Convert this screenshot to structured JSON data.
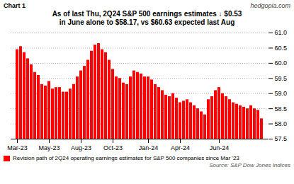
{
  "chart_data": {
    "type": "bar",
    "title": "As of last Thu, 2Q24 S&P 500 earnings estimates ↓ $0.53",
    "subtitle": "in June alone to $58.17, vs $60.63 expected last Aug",
    "annotations": [
      "Chart 1",
      "hedgopia.com",
      "Source: S&P Dow Jones Indices"
    ],
    "categories": [
      "Mar-23",
      null,
      null,
      null,
      null,
      null,
      null,
      null,
      null,
      "May-23",
      null,
      null,
      null,
      null,
      null,
      null,
      null,
      null,
      "Aug-23",
      null,
      null,
      null,
      null,
      null,
      null,
      null,
      null,
      "Oct-23",
      null,
      null,
      null,
      null,
      null,
      null,
      null,
      null,
      null,
      "Jan-24",
      null,
      null,
      null,
      null,
      null,
      null,
      null,
      null,
      "Apr-24",
      null,
      null,
      null,
      null,
      null,
      null,
      null,
      null,
      null,
      null,
      "Jun-24",
      null,
      null,
      null,
      null,
      null,
      null,
      null,
      null,
      null,
      null,
      null,
      null
    ],
    "series": [
      {
        "name": "Revision path of 2Q24 operating earnings estimates for S&P 500 companies since Mar '23",
        "color": "#ff0000",
        "values": [
          60.45,
          60.55,
          60.35,
          60.15,
          59.95,
          59.7,
          59.6,
          59.3,
          59.25,
          59.4,
          59.15,
          59.2,
          59.2,
          59.05,
          59.05,
          59.15,
          59.3,
          59.55,
          59.75,
          59.9,
          60.1,
          60.4,
          60.6,
          60.65,
          60.45,
          60.35,
          60.1,
          59.8,
          59.55,
          59.5,
          59.35,
          59.3,
          59.55,
          59.75,
          59.7,
          59.65,
          59.55,
          59.55,
          59.45,
          59.3,
          59.2,
          59.1,
          58.95,
          58.9,
          59.0,
          58.85,
          58.7,
          58.75,
          58.8,
          58.7,
          58.6,
          58.5,
          58.4,
          58.3,
          58.8,
          58.9,
          59.1,
          59.2,
          59.0,
          58.9,
          58.8,
          58.7,
          58.65,
          58.6,
          58.55,
          58.5,
          58.6,
          58.5,
          58.45,
          58.17
        ]
      }
    ],
    "ylim": [
      57.5,
      61.0
    ],
    "yticks": [
      57.5,
      {
        "value": 58,
        "label": "58.0"
      },
      58.5,
      {
        "value": 59,
        "label": "59.0"
      },
      59.5,
      {
        "value": 60,
        "label": "60.0"
      },
      60.5,
      {
        "value": 61,
        "label": "61.0"
      }
    ],
    "grid": true,
    "legend": "lower left"
  }
}
